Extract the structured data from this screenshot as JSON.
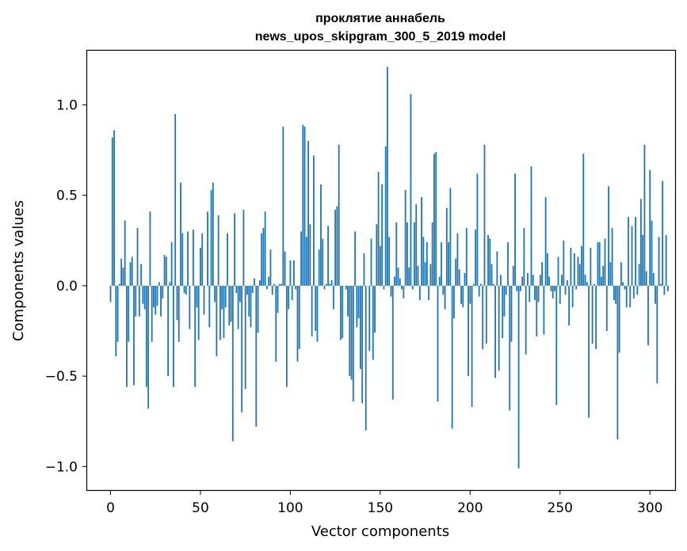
{
  "chart_data": {
    "type": "bar",
    "title_line1": "проклятие аннабель",
    "title_line2": "news_upos_skipgram_300_5_2019 model",
    "xlabel": "Vector components",
    "ylabel": "Components values",
    "xlim": [
      -13,
      314
    ],
    "ylim": [
      -1.13,
      1.3
    ],
    "x_ticks": [
      0,
      50,
      100,
      150,
      200,
      250,
      300
    ],
    "x_tick_labels": [
      "0",
      "50",
      "100",
      "150",
      "200",
      "250",
      "300"
    ],
    "y_ticks": [
      -1.0,
      -0.5,
      0.0,
      0.5,
      1.0
    ],
    "y_tick_labels": [
      "−1.0",
      "−0.5",
      "0.0",
      "0.5",
      "1.0"
    ],
    "bar_color": "#1f77b4",
    "grid": false,
    "values": [
      -0.09,
      0.82,
      0.86,
      -0.39,
      -0.31,
      0.01,
      0.15,
      0.1,
      0.36,
      -0.56,
      -0.31,
      0.13,
      0.16,
      -0.55,
      -0.17,
      0.32,
      -0.17,
      0.12,
      -0.1,
      -0.13,
      -0.56,
      -0.68,
      0.41,
      -0.31,
      -0.12,
      -0.16,
      -0.11,
      0.02,
      -0.17,
      -0.07,
      0.17,
      0.16,
      -0.5,
      0.02,
      0.24,
      -0.56,
      0.95,
      -0.19,
      -0.31,
      0.57,
      0.29,
      -0.04,
      -0.05,
      0.3,
      -0.24,
      0.0,
      0.31,
      -0.56,
      -0.12,
      -0.3,
      0.21,
      0.29,
      -0.16,
      0.0,
      0.41,
      -0.23,
      0.53,
      0.57,
      -0.09,
      -0.39,
      0.39,
      -0.3,
      -0.13,
      -0.29,
      -0.12,
      0.29,
      -0.22,
      -0.2,
      -0.86,
      0.4,
      -0.04,
      -0.24,
      -0.09,
      -0.7,
      0.42,
      -0.57,
      -0.05,
      -0.17,
      -0.23,
      -0.04,
      0.04,
      -0.78,
      -0.26,
      0.03,
      0.29,
      0.32,
      0.41,
      -0.02,
      0.05,
      0.2,
      -0.05,
      0.01,
      -0.42,
      -0.15,
      0.01,
      0.01,
      0.88,
      0.19,
      -0.56,
      -0.13,
      0.14,
      -0.08,
      0.14,
      -0.02,
      -0.42,
      -0.35,
      0.3,
      0.89,
      0.88,
      0.27,
      0.8,
      0.34,
      -0.28,
      0.72,
      -0.25,
      -0.31,
      0.2,
      0.56,
      0.26,
      -0.02,
      0.01,
      0.33,
      0.01,
      0.03,
      -0.13,
      0.42,
      0.44,
      0.78,
      -0.3,
      -0.29,
      0.0,
      -0.02,
      -0.17,
      -0.5,
      -0.52,
      -0.64,
      0.3,
      -0.23,
      -0.18,
      -0.46,
      -0.65,
      0.18,
      -0.8,
      0.0,
      -0.36,
      0.26,
      -0.41,
      -0.26,
      0.34,
      0.63,
      0.22,
      0.56,
      -0.02,
      0.77,
      1.21,
      0.27,
      -0.06,
      -0.63,
      0.05,
      0.35,
      0.1,
      0.04,
      -0.02,
      -0.07,
      0.53,
      0.35,
      0.1,
      1.06,
      -0.02,
      0.35,
      0.45,
      0.11,
      -0.08,
      0.49,
      0.27,
      0.13,
      0.24,
      -0.08,
      0.12,
      0.35,
      0.73,
      0.74,
      -0.64,
      0.05,
      0.24,
      -0.05,
      -0.13,
      0.43,
      0.24,
      0.54,
      -0.79,
      -0.18,
      0.15,
      0.29,
      0.09,
      -0.1,
      -0.12,
      0.07,
      0.32,
      -0.5,
      -0.1,
      -0.67,
      0.01,
      0.31,
      0.62,
      -0.06,
      0.01,
      -0.35,
      0.78,
      -0.32,
      0.28,
      0.26,
      0.12,
      0.01,
      -0.51,
      0.19,
      -0.47,
      0.06,
      -0.29,
      -0.17,
      -0.05,
      0.24,
      -0.69,
      -0.31,
      0.11,
      0.62,
      -0.03,
      -1.01,
      -0.03,
      0.05,
      0.32,
      -0.38,
      0.07,
      -0.09,
      0.66,
      0.06,
      -0.08,
      -0.28,
      -0.09,
      0.06,
      0.13,
      -0.27,
      0.49,
      0.18,
      0.05,
      -0.03,
      -0.07,
      -0.03,
      -0.66,
      0.16,
      -0.1,
      0.06,
      0.25,
      -0.05,
      0.03,
      -0.22,
      0.21,
      -0.12,
      0.18,
      -0.02,
      0.16,
      0.12,
      0.22,
      0.73,
      0.06,
      0.02,
      -0.73,
      0.21,
      -0.32,
      0.01,
      -0.35,
      0.24,
      0.24,
      0.05,
      0.11,
      0.26,
      -0.25,
      0.55,
      0.13,
      0.32,
      -0.08,
      -0.1,
      -0.85,
      -0.37,
      0.13,
      0.02,
      -0.02,
      -0.12,
      0.38,
      -0.12,
      0.33,
      -0.07,
      0.38,
      -0.05,
      0.12,
      0.48,
      0.28,
      0.78,
      0.08,
      -0.33,
      0.64,
      0.36,
      0.07,
      -0.1,
      -0.54,
      0.27,
      0.01,
      0.58,
      -0.05,
      0.28,
      -0.03
    ]
  }
}
